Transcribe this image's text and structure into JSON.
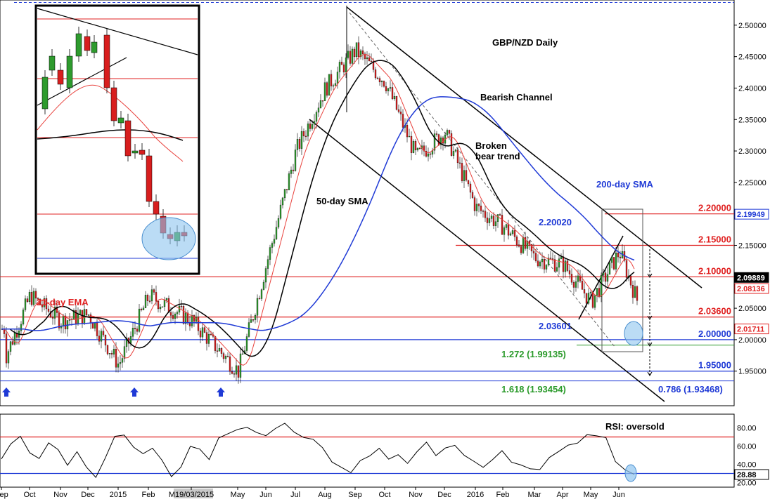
{
  "chart_data": [
    {
      "type": "candlestick",
      "title": "GBP/NZD Daily",
      "y_axis": {
        "range": [
          1.895,
          2.54
        ],
        "ticks": [
          "2.50000",
          "2.45000",
          "2.40000",
          "2.35000",
          "2.30000",
          "2.25000",
          "2.20000",
          "2.15000",
          "2.10000",
          "2.05000",
          "2.00000",
          "1.95000"
        ]
      },
      "x_axis": {
        "labels": [
          "Sep",
          "Oct",
          "Nov",
          "Dec",
          "2015",
          "Feb",
          "M19/03/2015",
          "May",
          "Jun",
          "Jul",
          "Aug",
          "Sep",
          "Oct",
          "Nov",
          "Dec",
          "2016",
          "Feb",
          "Mar",
          "Apr",
          "May",
          "Jun"
        ]
      },
      "price_series": {
        "points": [
          [
            "Sep 2014",
            1.97
          ],
          [
            "Oct 2014",
            2.07
          ],
          [
            "Nov 2014",
            2.03
          ],
          [
            "Dec 2014",
            2.04
          ],
          [
            "Jan 2015",
            1.96
          ],
          [
            "Feb 2015",
            2.07
          ],
          [
            "Mar 2015",
            2.03
          ],
          [
            "Apr 2015",
            1.95
          ],
          [
            "May 2015",
            2.12
          ],
          [
            "Jun 2015",
            2.3
          ],
          [
            "Jul 2015",
            2.4
          ],
          [
            "Aug 2015",
            2.46
          ],
          [
            "Sep 2015",
            2.41
          ],
          [
            "Oct 2015",
            2.29
          ],
          [
            "Nov 2015",
            2.33
          ],
          [
            "Dec 2015",
            2.21
          ],
          [
            "Jan 2016",
            2.18
          ],
          [
            "Feb 2016",
            2.13
          ],
          [
            "Mar 2016",
            2.12
          ],
          [
            "Apr 2016",
            2.06
          ],
          [
            "May 2016",
            2.14
          ],
          [
            "Jun 2016",
            2.017
          ]
        ]
      },
      "moving_averages": [
        {
          "name": "21-day EMA",
          "color": "#e8413c"
        },
        {
          "name": "50-day SMA",
          "color": "#000000"
        },
        {
          "name": "200-day SMA",
          "color": "#1f3ad6"
        }
      ],
      "annotations": {
        "bearish_channel": "Bearish Channel",
        "broken_bear_trend_1": "Broken",
        "broken_bear_trend_2": "bear trend",
        "sma50": "50-day SMA",
        "sma200": "200-day SMA",
        "ema21": "21-day EMA",
        "low_label": "2.03601",
        "high_label": "2.20020",
        "fib_1272": "1.272 (1.99135)",
        "fib_1618": "1.618 (1.93454)",
        "fib_0786": "0.786 (1.93468)"
      },
      "levels": [
        {
          "label": "2.53612",
          "value": 2.53612,
          "color": "#1f3ad6"
        },
        {
          "label": "2.20000",
          "value": 2.2,
          "color": "#e02020"
        },
        {
          "label": "2.15000",
          "value": 2.15,
          "color": "#e02020"
        },
        {
          "label": "2.10000",
          "value": 2.1,
          "color": "#e02020"
        },
        {
          "label": "2.03600",
          "value": 2.036,
          "color": "#e02020"
        },
        {
          "label": "2.00000",
          "value": 2.0,
          "color": "#1f3ad6"
        },
        {
          "label": "1.95000",
          "value": 1.95,
          "color": "#1f3ad6"
        }
      ],
      "price_tags": [
        {
          "label": "2.19949",
          "value": 2.19949,
          "color": "#1f3ad6"
        },
        {
          "label": "2.09889",
          "value": 2.09889,
          "color": "#000000"
        },
        {
          "label": "2.08136",
          "value": 2.08136,
          "color": "#e02020"
        },
        {
          "label": "2.01711",
          "value": 2.01711,
          "color": "#e02020"
        }
      ]
    },
    {
      "type": "line",
      "title": "RSI",
      "annotation": "RSI: oversold",
      "y_axis": {
        "range": [
          15,
          95
        ],
        "ticks": [
          "80.00",
          "60.00",
          "40.00",
          "20.00"
        ]
      },
      "levels": [
        70,
        30
      ],
      "current_value_label": "28.88",
      "series": [
        {
          "values": [
            45,
            60,
            72,
            55,
            48,
            62,
            58,
            40,
            52,
            38,
            25,
            45,
            68,
            72,
            60,
            52,
            58,
            44,
            28,
            35,
            62,
            55,
            48,
            70,
            74,
            78,
            80,
            74,
            70,
            80,
            83,
            78,
            72,
            68,
            56,
            45,
            35,
            30,
            42,
            50,
            56,
            44,
            50,
            40,
            55,
            62,
            48,
            56,
            60,
            50,
            42,
            38,
            47,
            55,
            44,
            40,
            35,
            32,
            48,
            56,
            60,
            62,
            70,
            74,
            68,
            45,
            35,
            29
          ]
        }
      ]
    }
  ],
  "inset": {
    "description_label": ""
  }
}
